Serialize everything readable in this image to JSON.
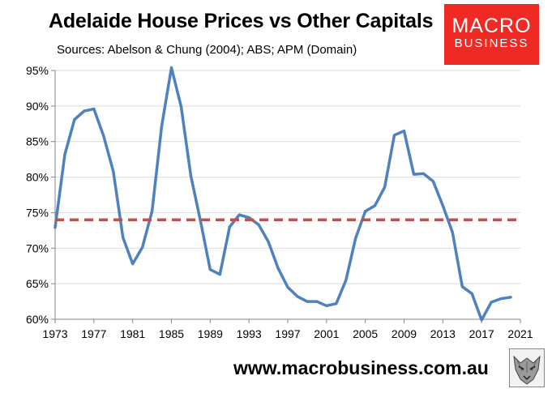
{
  "header": {
    "title": "Adelaide House Prices vs Other Capitals",
    "subtitle": "Sources: Abelson & Chung (2004); ABS; APM (Domain)"
  },
  "logo": {
    "line1": "MACRO",
    "line2": "BUSINESS",
    "color": "#ef2a24"
  },
  "footer": {
    "url": "www.macrobusiness.com.au"
  },
  "colors": {
    "series": "#4f81bd",
    "reference": "#c0504d",
    "axis": "#868686",
    "grid": "#d9d9d9"
  },
  "chart_data": {
    "type": "line",
    "title": "Adelaide House Prices vs Other Capitals",
    "xlim": [
      1973,
      2021
    ],
    "ylim": [
      60,
      95
    ],
    "x_ticks": [
      1973,
      1977,
      1981,
      1985,
      1989,
      1993,
      1997,
      2001,
      2005,
      2009,
      2013,
      2017,
      2021
    ],
    "y_ticks": [
      60,
      65,
      70,
      75,
      80,
      85,
      90,
      95
    ],
    "y_tick_labels": [
      "60%",
      "65%",
      "70%",
      "75%",
      "80%",
      "85%",
      "90%",
      "95%"
    ],
    "grid": true,
    "series": [
      {
        "x": [
          1973,
          1974,
          1975,
          1976,
          1977,
          1978,
          1979,
          1980,
          1981,
          1982,
          1983,
          1984,
          1985,
          1986,
          1987,
          1988,
          1989,
          1990,
          1991,
          1992,
          1993,
          1994,
          1995,
          1996,
          1997,
          1998,
          1999,
          2000,
          2001,
          2002,
          2003,
          2004,
          2005,
          2006,
          2007,
          2008,
          2009,
          2010,
          2011,
          2012,
          2013,
          2014,
          2015,
          2016,
          2017,
          2018,
          2019,
          2020
        ],
        "values": [
          72.9,
          83.2,
          88.1,
          89.3,
          89.6,
          85.8,
          80.8,
          71.5,
          67.8,
          70.1,
          75.2,
          87.2,
          95.4,
          89.9,
          80.2,
          73.8,
          67.0,
          66.3,
          73.0,
          74.7,
          74.3,
          73.3,
          70.9,
          67.2,
          64.5,
          63.2,
          62.5,
          62.5,
          61.9,
          62.2,
          65.5,
          71.4,
          75.2,
          76.0,
          78.6,
          85.9,
          86.5,
          80.4,
          80.5,
          79.4,
          76.0,
          72.2,
          64.6,
          63.6,
          59.9,
          62.4,
          62.9,
          63.1
        ]
      },
      {
        "x": [
          1973,
          2020
        ],
        "values": [
          74.0,
          74.0
        ],
        "style": "dashed"
      }
    ]
  }
}
